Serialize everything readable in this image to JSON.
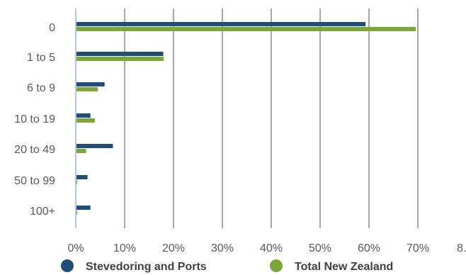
{
  "chart_data": {
    "type": "bar",
    "orientation": "horizontal",
    "categories": [
      "0",
      "1 to 5",
      "6 to 9",
      "10 to 19",
      "20 to 49",
      "50 to 99",
      "100+"
    ],
    "series": [
      {
        "name": "Stevedoring and Ports",
        "color": "#1f4e79",
        "values": [
          59.3,
          17.9,
          5.9,
          3.0,
          7.6,
          2.4,
          3.0
        ]
      },
      {
        "name": "Total New Zealand",
        "color": "#7aa63a",
        "values": [
          69.6,
          18.0,
          4.5,
          3.9,
          2.1,
          0.3,
          0.3
        ]
      }
    ],
    "x_ticks": [
      "0%",
      "10%",
      "20%",
      "30%",
      "40%",
      "50%",
      "60%",
      "70%",
      "8…"
    ],
    "xlim": [
      0,
      70
    ],
    "grid": true,
    "legend_position": "bottom"
  }
}
